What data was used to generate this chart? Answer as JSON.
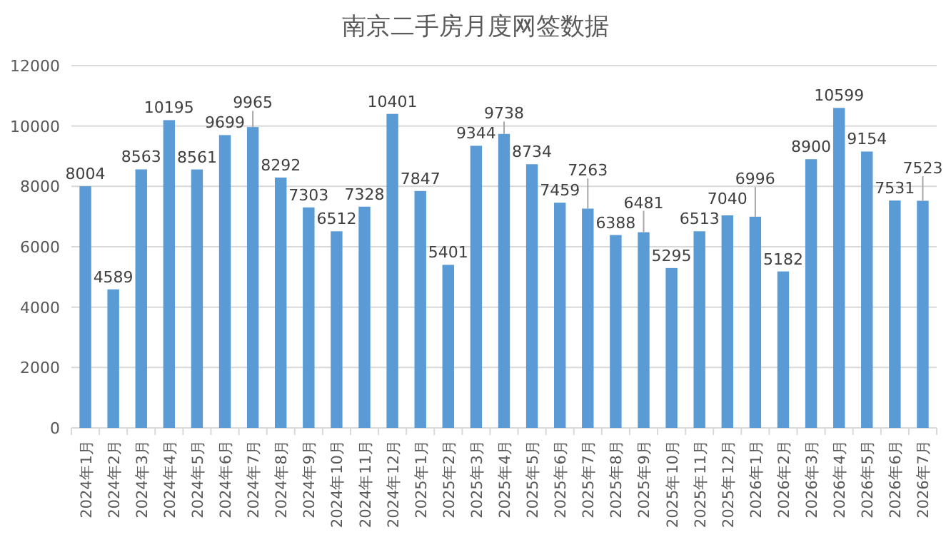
{
  "chart_data": {
    "type": "bar",
    "title": "南京二手房月度网签数据",
    "categories": [
      "2024年1月",
      "2024年2月",
      "2024年3月",
      "2024年4月",
      "2024年5月",
      "2024年6月",
      "2024年7月",
      "2024年8月",
      "2024年9月",
      "2024年10月",
      "2024年11月",
      "2024年12月",
      "2025年1月",
      "2025年2月",
      "2025年3月",
      "2025年4月",
      "2025年5月",
      "2025年6月",
      "2025年7月",
      "2025年8月",
      "2025年9月",
      "2025年10月",
      "2025年11月",
      "2025年12月",
      "2026年1月",
      "2026年2月",
      "2026年3月",
      "2026年4月",
      "2026年5月",
      "2026年6月",
      "2026年7月"
    ],
    "values": [
      8004,
      4589,
      8563,
      10195,
      8561,
      9699,
      9965,
      8292,
      7303,
      6512,
      7328,
      10401,
      7847,
      5401,
      9344,
      9738,
      8734,
      7459,
      7263,
      6388,
      6481,
      5295,
      6513,
      7040,
      6996,
      5182,
      8900,
      10599,
      9154,
      7531,
      7523
    ],
    "color": "#5b9bd5",
    "ylim": [
      0,
      12000
    ],
    "yticks": [
      0,
      2000,
      4000,
      6000,
      8000,
      10000,
      12000
    ],
    "grid": "y",
    "data_labels": true
  }
}
